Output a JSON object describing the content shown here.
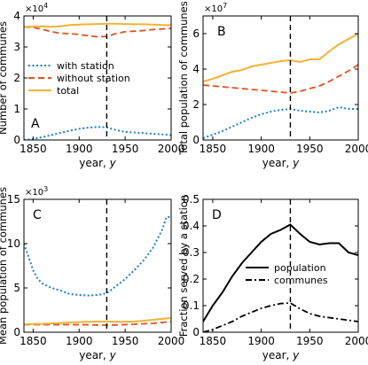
{
  "chart_data": [
    {
      "panel": "A",
      "type": "line",
      "xlabel": "year,  y",
      "ylabel": "Number of communes",
      "xlim": [
        1840,
        2000
      ],
      "ylim": [
        0,
        40000
      ],
      "xticks": [
        1850,
        1900,
        1950,
        2000
      ],
      "yticks": [
        0,
        10000,
        20000,
        30000,
        40000
      ],
      "ytick_labels": [
        "0",
        "1",
        "2",
        "3",
        "4"
      ],
      "multiplier": "x10^4",
      "vline_x": 1930,
      "legend": "middle-left",
      "series": [
        {
          "name": "with station",
          "color": "#1f80c8",
          "style": "dotted",
          "x": [
            1840,
            1850,
            1860,
            1870,
            1880,
            1890,
            1900,
            1910,
            1920,
            1930,
            1940,
            1950,
            1960,
            1970,
            1980,
            1990,
            2000
          ],
          "y": [
            0,
            300,
            900,
            1600,
            2300,
            3000,
            3600,
            4000,
            4200,
            4100,
            3200,
            2600,
            2400,
            2200,
            2000,
            1800,
            1600
          ]
        },
        {
          "name": "without station",
          "color": "#e2501f",
          "style": "dashed",
          "x": [
            1840,
            1850,
            1860,
            1870,
            1880,
            1890,
            1900,
            1910,
            1920,
            1930,
            1940,
            1950,
            1960,
            1970,
            1980,
            1990,
            2000
          ],
          "y": [
            36500,
            36300,
            35700,
            34900,
            34400,
            34300,
            34000,
            33600,
            33300,
            33400,
            34300,
            34900,
            35100,
            35300,
            35600,
            35800,
            36000
          ]
        },
        {
          "name": "total",
          "color": "#f4b233",
          "style": "solid",
          "x": [
            1840,
            1850,
            1860,
            1870,
            1880,
            1890,
            1900,
            1910,
            1920,
            1930,
            1940,
            1950,
            1960,
            1970,
            1980,
            1990,
            2000
          ],
          "y": [
            36500,
            36600,
            36600,
            36500,
            36700,
            37100,
            37200,
            37300,
            37400,
            37500,
            37500,
            37400,
            37300,
            37300,
            37200,
            37100,
            37000
          ]
        }
      ]
    },
    {
      "panel": "B",
      "type": "line",
      "xlabel": "year,  y",
      "ylabel": "Total population of communes",
      "xlim": [
        1840,
        2000
      ],
      "ylim": [
        0,
        70000000
      ],
      "xticks": [
        1850,
        1900,
        1950,
        2000
      ],
      "yticks": [
        0,
        20000000,
        40000000,
        60000000
      ],
      "ytick_labels": [
        "0",
        "2",
        "4",
        "6"
      ],
      "multiplier": "x10^7",
      "vline_x": 1930,
      "series": [
        {
          "name": "",
          "color": "#f4b233",
          "style": "solid",
          "x": [
            1840,
            1850,
            1860,
            1870,
            1880,
            1890,
            1900,
            1910,
            1920,
            1930,
            1940,
            1950,
            1960,
            1970,
            1980,
            1990,
            2000
          ],
          "y": [
            33000000,
            34500000,
            36500000,
            38500000,
            39500000,
            41500000,
            42500000,
            43500000,
            44500000,
            45000000,
            44000000,
            45500000,
            45500000,
            50000000,
            54000000,
            57000000,
            60000000
          ]
        },
        {
          "name": "",
          "color": "#e2501f",
          "style": "dashed",
          "x": [
            1840,
            1850,
            1860,
            1870,
            1880,
            1890,
            1900,
            1910,
            1920,
            1930,
            1940,
            1950,
            1960,
            1970,
            1980,
            1990,
            2000
          ],
          "y": [
            31000000,
            30500000,
            30000000,
            29500000,
            29000000,
            28500000,
            28000000,
            27500000,
            27000000,
            26500000,
            27500000,
            29000000,
            30500000,
            33000000,
            36000000,
            39000000,
            42500000
          ]
        },
        {
          "name": "",
          "color": "#1f80c8",
          "style": "dotted",
          "x": [
            1840,
            1850,
            1860,
            1870,
            1880,
            1890,
            1900,
            1910,
            1920,
            1930,
            1940,
            1950,
            1960,
            1970,
            1980,
            1990,
            2000
          ],
          "y": [
            1000000,
            3000000,
            5000000,
            7500000,
            10000000,
            12500000,
            14500000,
            16000000,
            17000000,
            17500000,
            16500000,
            16000000,
            15500000,
            16500000,
            18500000,
            17500000,
            17500000
          ]
        }
      ]
    },
    {
      "panel": "C",
      "type": "line",
      "xlabel": "year,  y",
      "ylabel": "Mean population of communes",
      "xlim": [
        1840,
        2000
      ],
      "ylim": [
        0,
        15000
      ],
      "xticks": [
        1850,
        1900,
        1950,
        2000
      ],
      "yticks": [
        0,
        5000,
        10000,
        15000
      ],
      "ytick_labels": [
        "0",
        "5",
        "10",
        "15"
      ],
      "multiplier": "x10^3",
      "vline_x": 1930,
      "series": [
        {
          "name": "",
          "color": "#1f80c8",
          "style": "dotted",
          "x": [
            1840,
            1845,
            1850,
            1855,
            1860,
            1870,
            1880,
            1890,
            1900,
            1910,
            1920,
            1930,
            1940,
            1950,
            1960,
            1970,
            1980,
            1990,
            1995,
            2000
          ],
          "y": [
            10000,
            8500,
            7000,
            6000,
            5500,
            5000,
            4700,
            4300,
            4200,
            4150,
            4200,
            4400,
            5200,
            6000,
            7000,
            8100,
            9500,
            11500,
            13000,
            13000
          ]
        },
        {
          "name": "",
          "color": "#e2501f",
          "style": "dashed",
          "x": [
            1840,
            1860,
            1880,
            1900,
            1920,
            1930,
            1940,
            1960,
            1980,
            2000
          ],
          "y": [
            850,
            850,
            850,
            850,
            820,
            800,
            820,
            900,
            1000,
            1200
          ]
        },
        {
          "name": "",
          "color": "#f4b233",
          "style": "solid",
          "x": [
            1840,
            1860,
            1880,
            1900,
            1920,
            1930,
            1940,
            1960,
            1980,
            2000
          ],
          "y": [
            900,
            950,
            1050,
            1150,
            1200,
            1200,
            1180,
            1200,
            1400,
            1600
          ]
        }
      ]
    },
    {
      "panel": "D",
      "type": "line",
      "xlabel": "year,  y",
      "ylabel": "Fraction served by a station",
      "xlim": [
        1840,
        2000
      ],
      "ylim": [
        0,
        0.5
      ],
      "xticks": [
        1850,
        1900,
        1950,
        2000
      ],
      "yticks": [
        0,
        0.1,
        0.2,
        0.3,
        0.4,
        0.5
      ],
      "ytick_labels": [
        "0",
        "0.1",
        "0.2",
        "0.3",
        "0.4",
        "0.5"
      ],
      "vline_x": 1930,
      "legend": "middle-right",
      "series": [
        {
          "name": "population",
          "color": "#000000",
          "style": "solid",
          "x": [
            1840,
            1850,
            1860,
            1870,
            1880,
            1890,
            1900,
            1910,
            1920,
            1930,
            1940,
            1950,
            1960,
            1970,
            1980,
            1990,
            2000
          ],
          "y": [
            0.04,
            0.1,
            0.15,
            0.21,
            0.26,
            0.3,
            0.34,
            0.37,
            0.385,
            0.405,
            0.37,
            0.34,
            0.33,
            0.335,
            0.335,
            0.3,
            0.29
          ]
        },
        {
          "name": "communes",
          "color": "#000000",
          "style": "dashdot",
          "x": [
            1840,
            1850,
            1860,
            1870,
            1880,
            1890,
            1900,
            1910,
            1920,
            1930,
            1940,
            1950,
            1960,
            1970,
            1980,
            1990,
            2000
          ],
          "y": [
            0.0,
            0.01,
            0.025,
            0.04,
            0.06,
            0.075,
            0.09,
            0.1,
            0.108,
            0.11,
            0.088,
            0.07,
            0.06,
            0.055,
            0.05,
            0.045,
            0.04
          ]
        }
      ]
    }
  ]
}
